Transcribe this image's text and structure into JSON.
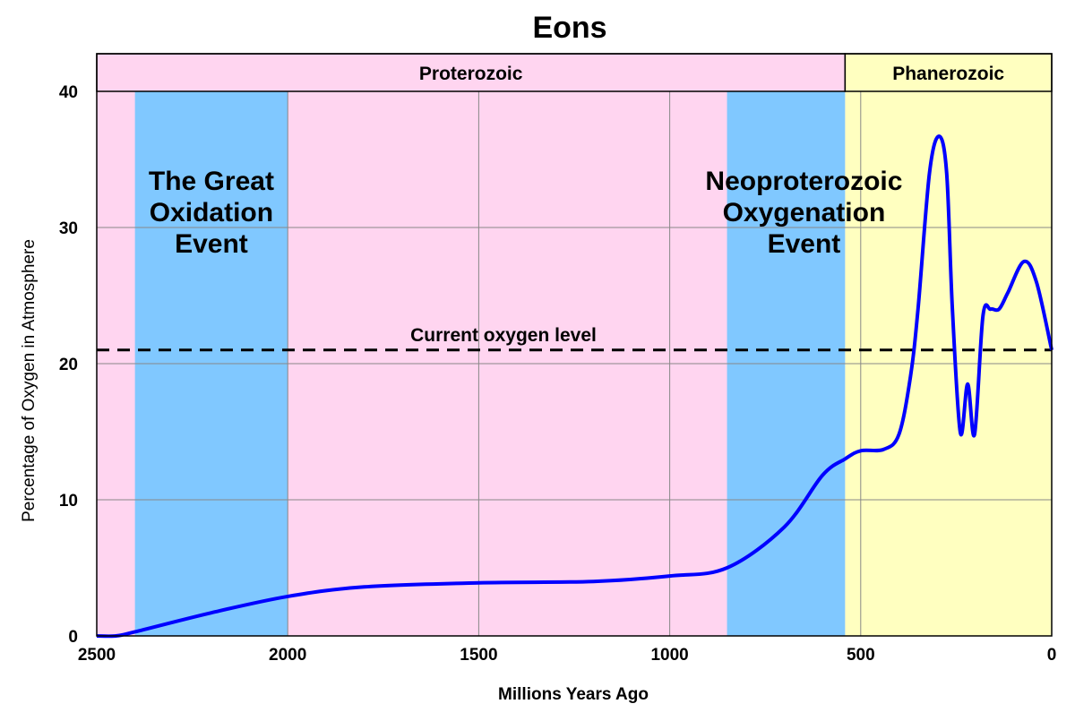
{
  "chart_data": {
    "type": "line",
    "title": "Eons",
    "xlabel": "Millions Years Ago",
    "ylabel": "Percentage of Oxygen in Atmosphere",
    "xlim": [
      2500,
      0
    ],
    "ylim": [
      0,
      40
    ],
    "x_reversed": true,
    "grid": true,
    "xticks": [
      2500,
      2000,
      1500,
      1000,
      500,
      0
    ],
    "yticks": [
      0,
      10,
      20,
      30,
      40
    ],
    "eons": [
      {
        "label": "Proterozoic",
        "from": 2500,
        "to": 541,
        "color": "#ffd5f0"
      },
      {
        "label": "Phanerozoic",
        "from": 541,
        "to": 0,
        "color": "#ffffc0"
      }
    ],
    "events": [
      {
        "label": [
          "The Great",
          "Oxidation",
          "Event"
        ],
        "from": 2400,
        "to": 2000,
        "color": "#80c8ff"
      },
      {
        "label": [
          "Neoproterozoic",
          "Oxygenation",
          "Event"
        ],
        "from": 850,
        "to": 541,
        "color": "#80c8ff"
      }
    ],
    "reference_line": {
      "label": "Current oxygen level",
      "y": 21,
      "style": "dashed"
    },
    "series": [
      {
        "color": "#0000ff",
        "x": [
          2500,
          2450,
          2400,
          2200,
          2000,
          1800,
          1500,
          1200,
          1000,
          850,
          700,
          600,
          541,
          500,
          440,
          400,
          370,
          350,
          320,
          295,
          275,
          260,
          239,
          220,
          202,
          180,
          160,
          138,
          115,
          73,
          40,
          0
        ],
        "y": [
          0,
          0,
          0.3,
          1.7,
          2.9,
          3.6,
          3.9,
          4.0,
          4.4,
          5.0,
          8.0,
          11.8,
          13.0,
          13.6,
          13.7,
          14.8,
          19,
          24,
          34,
          36.7,
          34,
          24,
          14.9,
          18.5,
          14.8,
          23.5,
          24,
          24,
          25.2,
          27.5,
          26,
          21
        ]
      }
    ]
  }
}
